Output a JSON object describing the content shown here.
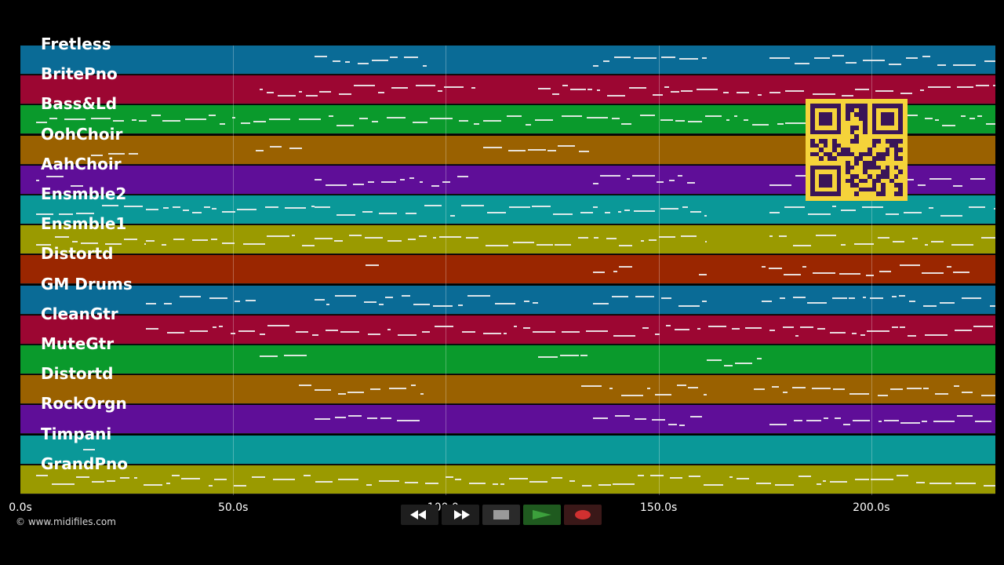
{
  "tracks": [
    {
      "name": "Fretless",
      "color": "#0a6b96"
    },
    {
      "name": "BritePno",
      "color": "#9c0632"
    },
    {
      "name": "Bass&Ld",
      "color": "#0a9a2c"
    },
    {
      "name": "OohChoir",
      "color": "#9a6100"
    },
    {
      "name": "AahChoir",
      "color": "#5f0e98"
    },
    {
      "name": "Ensmble2",
      "color": "#0a9898"
    },
    {
      "name": "Ensmble1",
      "color": "#9a9a00"
    },
    {
      "name": "Distortd",
      "color": "#9a2600"
    },
    {
      "name": "GM Drums",
      "color": "#0a6b96"
    },
    {
      "name": "CleanGtr",
      "color": "#9c0632"
    },
    {
      "name": "MuteGtr",
      "color": "#0a9a2c"
    },
    {
      "name": "Distortd",
      "color": "#9a6100"
    },
    {
      "name": "RockOrgn",
      "color": "#5f0e98"
    },
    {
      "name": "Timpani",
      "color": "#0a9898"
    },
    {
      "name": "GrandPno",
      "color": "#9a9a00"
    }
  ],
  "time_axis": {
    "ticks": [
      "0.0s",
      "50.0s",
      "100.0s",
      "150.0s",
      "200.0s"
    ]
  },
  "credit": "© www.midifiles.com",
  "transport": {
    "rewind_icon": "rewind-icon",
    "fast_forward_icon": "fast-forward-icon",
    "stop_icon": "stop-icon",
    "play_icon": "play-icon",
    "record_icon": "record-icon",
    "play_color": "#3ca03c",
    "record_color": "#d03030"
  },
  "qr_code": {
    "background": "#f5d33a",
    "foreground": "#3a1558"
  }
}
